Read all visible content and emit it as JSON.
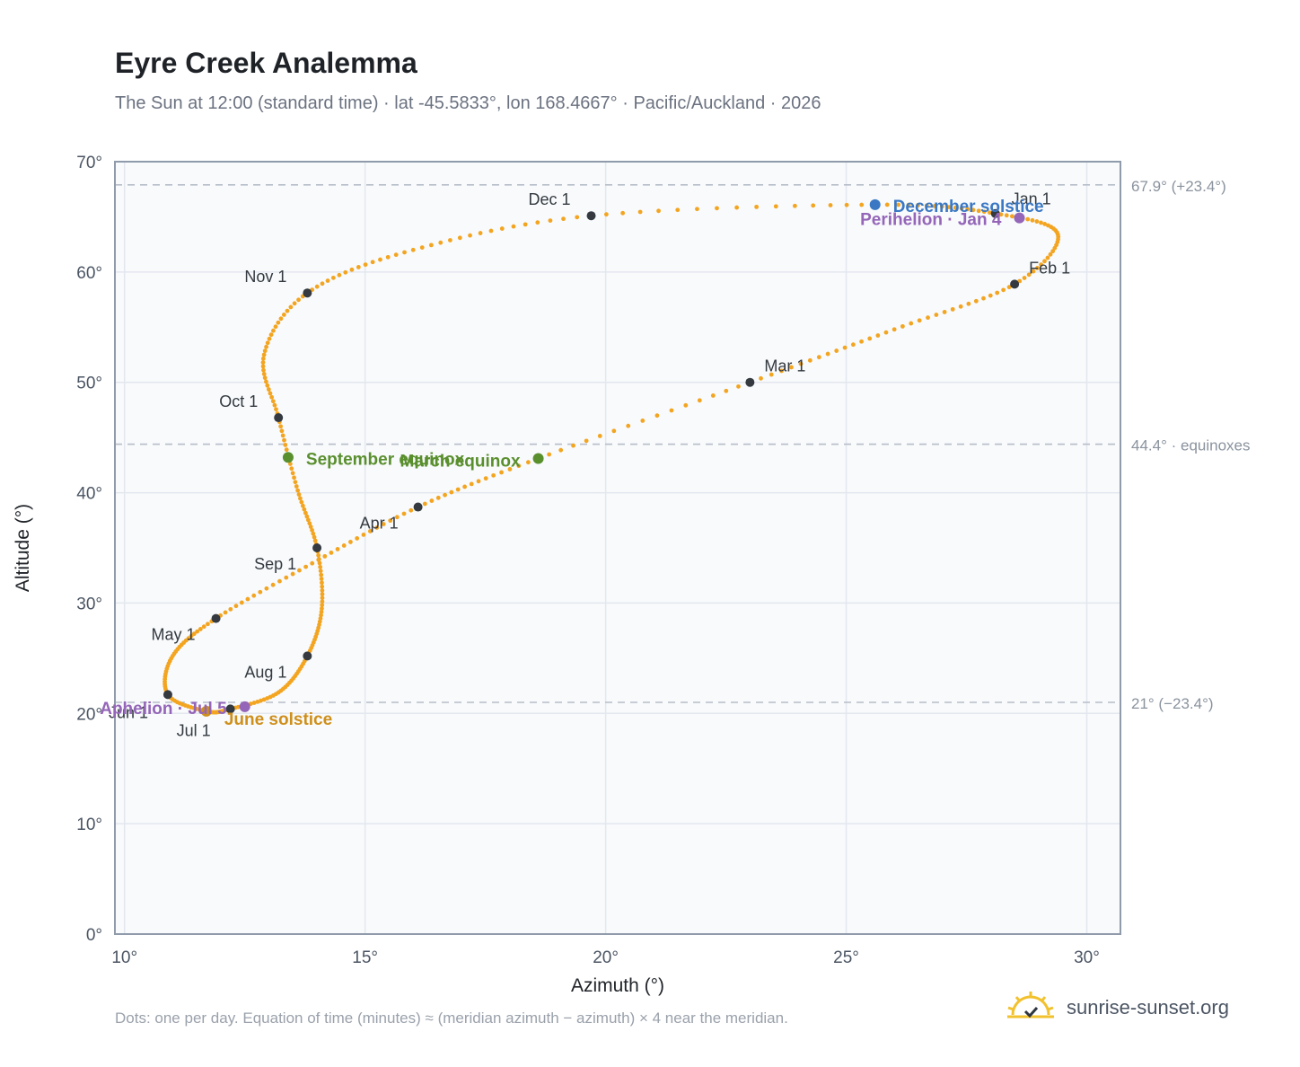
{
  "title": "Eyre Creek Analemma",
  "subtitle": "The Sun at 12:00 (standard time) · lat -45.5833°, lon 168.4667° · Pacific/Auckland · 2026",
  "footnote": "Dots: one per day. Equation of time (minutes) ≈ (meridian azimuth − azimuth) × 4 near the meridian.",
  "brand": "sunrise-sunset.org",
  "colors": {
    "path": "#f3a521",
    "month_marker": "#343a40",
    "december_solstice": "#3a78c4",
    "june_solstice": "#cf8f1b",
    "equinox": "#5a8f2e",
    "apsis": "#9465b8",
    "grid": "#e3e7ee",
    "plot_bg": "#f8fafc",
    "frame": "#8f9bab",
    "reference_line": "#b7bec8"
  },
  "chart_data": {
    "type": "scatter",
    "xlabel": "Azimuth (°)",
    "ylabel": "Altitude (°)",
    "xlim": [
      9.8,
      30.7
    ],
    "ylim": [
      0,
      70
    ],
    "x_ticks": [
      10,
      15,
      20,
      25,
      30
    ],
    "y_ticks": [
      0,
      10,
      20,
      30,
      40,
      50,
      60,
      70
    ],
    "x_tick_labels": [
      "10°",
      "15°",
      "20°",
      "25°",
      "30°"
    ],
    "y_tick_labels": [
      "0°",
      "10°",
      "20°",
      "30°",
      "40°",
      "50°",
      "60°",
      "70°"
    ],
    "grid": true,
    "reference_lines": [
      {
        "y": 67.9,
        "label": "67.9° (+23.4°)"
      },
      {
        "y": 44.4,
        "label": "44.4° · equinoxes"
      },
      {
        "y": 21.0,
        "label": "21° (−23.4°)"
      }
    ],
    "month_markers": [
      {
        "label": "Jan 1",
        "x": 28.1,
        "y": 65.3
      },
      {
        "label": "Feb 1",
        "x": 28.5,
        "y": 58.9
      },
      {
        "label": "Mar 1",
        "x": 23.0,
        "y": 50.0
      },
      {
        "label": "Apr 1",
        "x": 16.1,
        "y": 38.7
      },
      {
        "label": "May 1",
        "x": 11.9,
        "y": 28.6
      },
      {
        "label": "Jun 1",
        "x": 10.9,
        "y": 21.7
      },
      {
        "label": "Jul 1",
        "x": 12.2,
        "y": 20.4
      },
      {
        "label": "Aug 1",
        "x": 13.8,
        "y": 25.2
      },
      {
        "label": "Sep 1",
        "x": 14.0,
        "y": 35.0
      },
      {
        "label": "Oct 1",
        "x": 13.2,
        "y": 46.8
      },
      {
        "label": "Nov 1",
        "x": 13.8,
        "y": 58.1
      },
      {
        "label": "Dec 1",
        "x": 19.7,
        "y": 65.1
      }
    ],
    "events": [
      {
        "label": "December solstice",
        "x": 25.6,
        "y": 66.1,
        "kind": "december_solstice"
      },
      {
        "label": "Perihelion · Jan 4",
        "x": 28.6,
        "y": 64.9,
        "kind": "apsis"
      },
      {
        "label": "March equinox",
        "x": 18.6,
        "y": 43.1,
        "kind": "equinox"
      },
      {
        "label": "September equinox",
        "x": 13.4,
        "y": 43.2,
        "kind": "equinox"
      },
      {
        "label": "June solstice",
        "x": 11.7,
        "y": 20.2,
        "kind": "june_solstice"
      },
      {
        "label": "Aphelion · Jul 5",
        "x": 12.5,
        "y": 20.6,
        "kind": "apsis"
      }
    ],
    "annual_path": [
      {
        "date": "Jan 1",
        "x": 28.1,
        "y": 65.3
      },
      {
        "date": "Jan 15",
        "x": 29.4,
        "y": 63.4
      },
      {
        "date": "Feb 1",
        "x": 28.5,
        "y": 58.9
      },
      {
        "date": "Feb 15",
        "x": 26.0,
        "y": 54.8
      },
      {
        "date": "Mar 1",
        "x": 23.0,
        "y": 50.0
      },
      {
        "date": "Mar 20",
        "x": 18.6,
        "y": 43.1
      },
      {
        "date": "Apr 1",
        "x": 16.1,
        "y": 38.7
      },
      {
        "date": "Apr 15",
        "x": 13.9,
        "y": 33.6
      },
      {
        "date": "May 1",
        "x": 11.9,
        "y": 28.6
      },
      {
        "date": "May 15",
        "x": 11.0,
        "y": 25.2
      },
      {
        "date": "Jun 1",
        "x": 10.9,
        "y": 21.7
      },
      {
        "date": "Jun 21",
        "x": 11.7,
        "y": 20.2
      },
      {
        "date": "Jul 1",
        "x": 12.2,
        "y": 20.4
      },
      {
        "date": "Jul 15",
        "x": 13.2,
        "y": 21.9
      },
      {
        "date": "Aug 1",
        "x": 13.8,
        "y": 25.2
      },
      {
        "date": "Aug 15",
        "x": 14.1,
        "y": 29.5
      },
      {
        "date": "Sep 1",
        "x": 14.0,
        "y": 35.0
      },
      {
        "date": "Sep 15",
        "x": 13.6,
        "y": 40.2
      },
      {
        "date": "Oct 1",
        "x": 13.2,
        "y": 46.8
      },
      {
        "date": "Oct 15",
        "x": 12.9,
        "y": 52.5
      },
      {
        "date": "Nov 1",
        "x": 13.8,
        "y": 58.1
      },
      {
        "date": "Nov 15",
        "x": 16.0,
        "y": 62.0
      },
      {
        "date": "Dec 1",
        "x": 19.7,
        "y": 65.1
      },
      {
        "date": "Dec 21",
        "x": 25.6,
        "y": 66.1
      }
    ]
  }
}
